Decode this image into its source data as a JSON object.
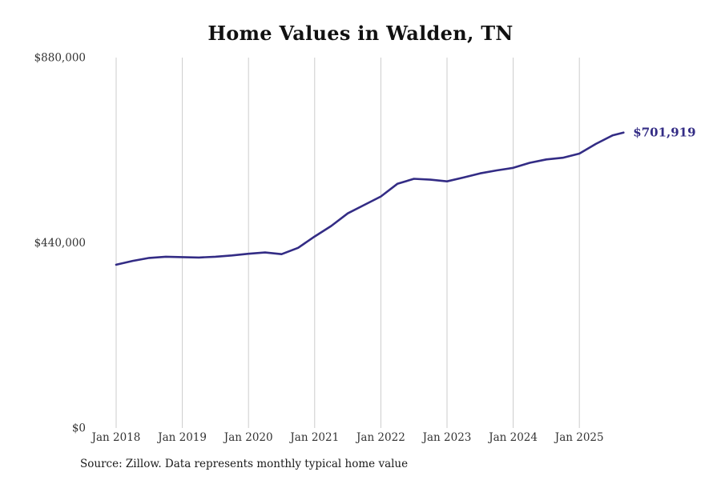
{
  "page": {
    "title": "Home Values in Walden, TN"
  },
  "footer": {
    "source_note": "Source: Zillow. Data represents monthly typical home value"
  },
  "colors": {
    "line": "#332c85",
    "grid": "#cccccc",
    "axis_text": "#333333",
    "title_text": "#111111",
    "final_label_text": "#332c85"
  },
  "chart_data": {
    "type": "line",
    "title": "Home Values in Walden, TN",
    "xlabel": "",
    "ylabel": "",
    "ylim": [
      0,
      880000
    ],
    "grid": "vertical-only",
    "legend": "none",
    "x_tick_labels": [
      "Jan 2018",
      "Jan 2019",
      "Jan 2020",
      "Jan 2021",
      "Jan 2022",
      "Jan 2023",
      "Jan 2024",
      "Jan 2025"
    ],
    "y_ticks": [
      {
        "label": "$0",
        "value": 0
      },
      {
        "label": "$440,000",
        "value": 440000
      },
      {
        "label": "$880,000",
        "value": 880000
      }
    ],
    "final_value": 701919,
    "final_value_label": "$701,919",
    "series": [
      {
        "name": "Monthly typical home value",
        "x_months_from_jan_2018": [
          0,
          3,
          6,
          9,
          12,
          15,
          18,
          21,
          24,
          27,
          30,
          33,
          36,
          39,
          42,
          45,
          48,
          51,
          54,
          57,
          60,
          63,
          66,
          69,
          72,
          75,
          78,
          81,
          84,
          87,
          90,
          92
        ],
        "values": [
          388000,
          397000,
          404000,
          407000,
          406000,
          405000,
          407000,
          410000,
          414000,
          417000,
          413000,
          428000,
          455000,
          480000,
          510000,
          530000,
          550000,
          580000,
          592000,
          590000,
          586000,
          595000,
          605000,
          612000,
          618000,
          630000,
          638000,
          642000,
          652000,
          675000,
          695000,
          701919
        ]
      }
    ]
  }
}
